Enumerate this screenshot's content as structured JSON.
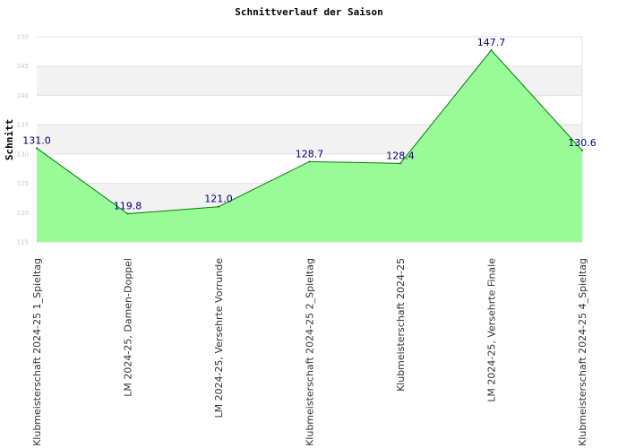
{
  "chart_data": {
    "type": "area",
    "title": "Schnittverlauf der Saison",
    "xlabel": "",
    "ylabel": "Schnitt",
    "ylim": [
      115,
      150
    ],
    "yticks": [
      115,
      120,
      125,
      130,
      135,
      140,
      145,
      150
    ],
    "categories": [
      "Klubmeisterschaft 2024-25   1_Spieltag",
      "LM 2024-25, Damen-Doppel",
      "LM 2024-25, Versehrte Vorrunde",
      "Klubmeisterschaft 2024-25   2_Spieltag",
      "Klubmeisterschaft 2024-25",
      "LM 2024-25, Versehrte Finale",
      "Klubmeisterschaft 2024-25   4_Spieltag"
    ],
    "values": [
      131.0,
      119.8,
      121.0,
      128.7,
      128.4,
      147.7,
      130.6
    ],
    "data_labels": [
      "131.0",
      "119.8",
      "121.0",
      "128.7",
      "128.4",
      "147.7",
      "130.6"
    ],
    "grid": true,
    "colors": {
      "fill": "#98fb98",
      "line": "#008000",
      "band": "#f2f2f2",
      "grid": "#e0e0e0",
      "data_label": "#00006e"
    }
  }
}
